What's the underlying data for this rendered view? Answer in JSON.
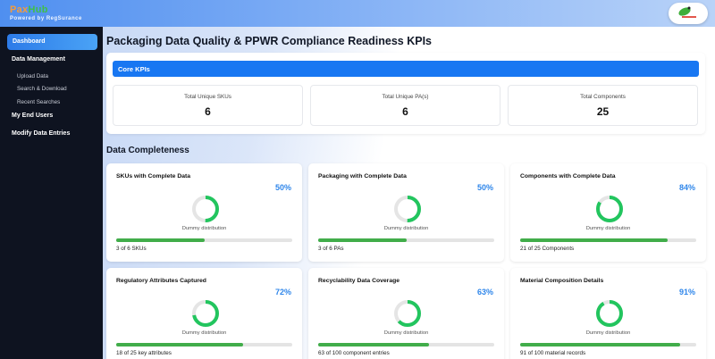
{
  "brand": {
    "name_part1": "Pax",
    "name_part2": "Hub",
    "tagline": "Powered by RegSurance",
    "logo_text": "RegSurance"
  },
  "sidebar": {
    "items": [
      {
        "label": "Dashboard",
        "active": true
      },
      {
        "label": "Data Management"
      },
      {
        "label": "Upload Data",
        "sub": true
      },
      {
        "label": "Search & Download",
        "sub": true
      },
      {
        "label": "Recent Searches",
        "sub": true
      },
      {
        "label": "My End Users"
      },
      {
        "label": "Modify Data Entries"
      }
    ]
  },
  "page_title": "Packaging Data Quality & PPWR Compliance Readiness KPIs",
  "core": {
    "header": "Core KPIs",
    "kpis": [
      {
        "label": "Total Unique SKUs",
        "value": "6"
      },
      {
        "label": "Total Unique PA(s)",
        "value": "6"
      },
      {
        "label": "Total Components",
        "value": "25"
      }
    ]
  },
  "completeness": {
    "title": "Data Completeness",
    "cards": [
      {
        "title": "SKUs with Complete Data",
        "pct": "50%",
        "value": 50,
        "chart_label": "Dummy distribution",
        "footer": "3 of 6 SKUs"
      },
      {
        "title": "Packaging with Complete Data",
        "pct": "50%",
        "value": 50,
        "chart_label": "Dummy distribution",
        "footer": "3 of 6 PAs"
      },
      {
        "title": "Components with Complete Data",
        "pct": "84%",
        "value": 84,
        "chart_label": "Dummy distribution",
        "footer": "21 of 25 Components"
      },
      {
        "title": "Regulatory Attributes Captured",
        "pct": "72%",
        "value": 72,
        "chart_label": "Dummy distribution",
        "footer": "18 of 25 key attributes"
      },
      {
        "title": "Recyclability Data Coverage",
        "pct": "63%",
        "value": 63,
        "chart_label": "Dummy distribution",
        "footer": "63 of 100 component entries"
      },
      {
        "title": "Material Composition Details",
        "pct": "91%",
        "value": 91,
        "chart_label": "Dummy distribution",
        "footer": "91 of 100 material records"
      }
    ]
  },
  "colors": {
    "accent": "#1877f2",
    "progress": "#41ad4a",
    "donut": "#22c55e",
    "percent": "#2f86ea",
    "sidebar": "#0e1320"
  }
}
